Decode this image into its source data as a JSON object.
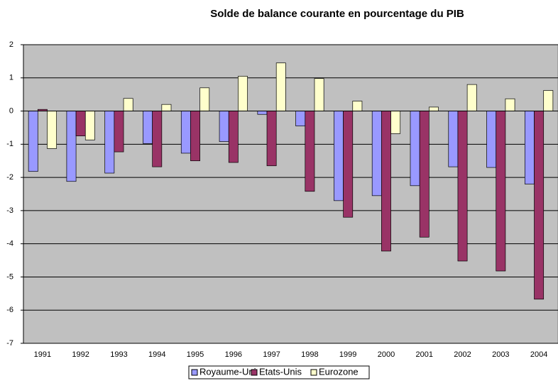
{
  "chart_data": {
    "type": "bar",
    "title": "Solde de balance courante en pourcentage du PIB",
    "categories": [
      "1991",
      "1992",
      "1993",
      "1994",
      "1995",
      "1996",
      "1997",
      "1998",
      "1999",
      "2000",
      "2001",
      "2002",
      "2003",
      "2004"
    ],
    "series": [
      {
        "name": "Royaume-Uni",
        "color": "#9999ff",
        "values": [
          -1.82,
          -2.12,
          -1.87,
          -0.98,
          -1.27,
          -0.92,
          -0.1,
          -0.45,
          -2.7,
          -2.55,
          -2.25,
          -1.68,
          -1.7,
          -2.2
        ]
      },
      {
        "name": "Etats-Unis",
        "color": "#993366",
        "values": [
          0.05,
          -0.75,
          -1.23,
          -1.68,
          -1.5,
          -1.55,
          -1.65,
          -2.42,
          -3.2,
          -4.22,
          -3.8,
          -4.52,
          -4.82,
          -5.67
        ]
      },
      {
        "name": "Eurozone",
        "color": "#ffffcc",
        "values": [
          -1.13,
          -0.87,
          0.38,
          0.2,
          0.7,
          1.05,
          1.45,
          0.98,
          0.3,
          -0.68,
          0.12,
          0.8,
          0.37,
          0.62
        ]
      }
    ],
    "ylim": [
      -7,
      2
    ],
    "yticks": [
      -7,
      -6,
      -5,
      -4,
      -3,
      -2,
      -1,
      0,
      1,
      2
    ],
    "grid": true,
    "legend": "bottom"
  }
}
